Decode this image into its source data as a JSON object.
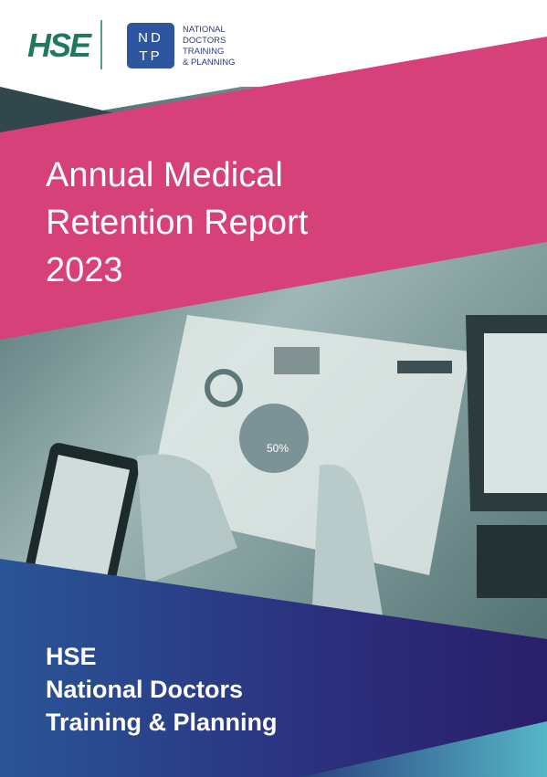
{
  "header": {
    "hse_logo": "HSE",
    "ndtp_badge": [
      "ND",
      "TP"
    ],
    "ndtp_name": [
      "NATIONAL",
      "DOCTORS",
      "TRAINING",
      "& PLANNING"
    ]
  },
  "title": [
    "Annual Medical",
    "Retention Report",
    "2023"
  ],
  "photo": {
    "label": "50%"
  },
  "footer": [
    "HSE",
    "National Doctors",
    "Training & Planning"
  ]
}
